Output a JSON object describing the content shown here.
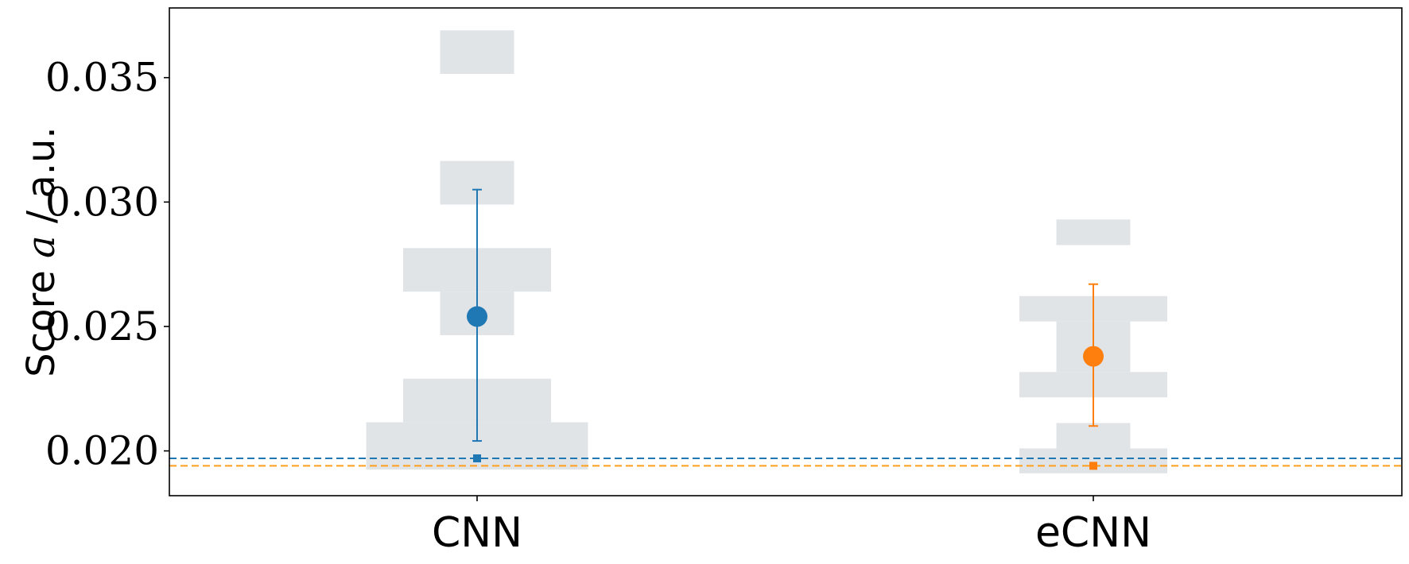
{
  "chart_data": {
    "type": "scatter",
    "title": "",
    "xlabel": "",
    "ylabel_parts": [
      "Score ",
      "a",
      " / a.u."
    ],
    "categories": [
      "CNN",
      "eCNN"
    ],
    "ylim": [
      0.0182,
      0.0378
    ],
    "yticks": [
      0.02,
      0.025,
      0.03,
      0.035
    ],
    "ytick_labels": [
      "0.020",
      "0.025",
      "0.030",
      "0.035"
    ],
    "grid": false,
    "series": [
      {
        "category": "CNN",
        "color": "#1f77b4",
        "mean": 0.0254,
        "err_low": 0.0204,
        "err_high": 0.0305,
        "baseline": 0.0197,
        "histogram": [
          {
            "y0": 0.01925,
            "y1": 0.02115,
            "width": 0.36
          },
          {
            "y0": 0.02115,
            "y1": 0.0229,
            "width": 0.24
          },
          {
            "y0": 0.0229,
            "y1": 0.02465,
            "width": 0.0
          },
          {
            "y0": 0.02465,
            "y1": 0.0264,
            "width": 0.12
          },
          {
            "y0": 0.0264,
            "y1": 0.02815,
            "width": 0.24
          },
          {
            "y0": 0.02815,
            "y1": 0.0299,
            "width": 0.0
          },
          {
            "y0": 0.0299,
            "y1": 0.03165,
            "width": 0.12
          },
          {
            "y0": 0.03165,
            "y1": 0.03515,
            "width": 0.0
          },
          {
            "y0": 0.03515,
            "y1": 0.0369,
            "width": 0.12
          }
        ]
      },
      {
        "category": "eCNN",
        "color": "#ff7f0e",
        "mean": 0.0238,
        "err_low": 0.021,
        "err_high": 0.0267,
        "baseline": 0.0194,
        "histogram": [
          {
            "y0": 0.0191,
            "y1": 0.0201,
            "width": 0.24
          },
          {
            "y0": 0.0201,
            "y1": 0.02112,
            "width": 0.12
          },
          {
            "y0": 0.02112,
            "y1": 0.02215,
            "width": 0.0
          },
          {
            "y0": 0.02215,
            "y1": 0.02317,
            "width": 0.24
          },
          {
            "y0": 0.02317,
            "y1": 0.0252,
            "width": 0.12
          },
          {
            "y0": 0.0252,
            "y1": 0.02622,
            "width": 0.24
          },
          {
            "y0": 0.02622,
            "y1": 0.02827,
            "width": 0.0
          },
          {
            "y0": 0.02827,
            "y1": 0.0293,
            "width": 0.12
          }
        ]
      }
    ],
    "baseline_line_colors": [
      "#1f77b4",
      "#ff9f1c"
    ],
    "histogram_color": "#e1e4e7"
  }
}
